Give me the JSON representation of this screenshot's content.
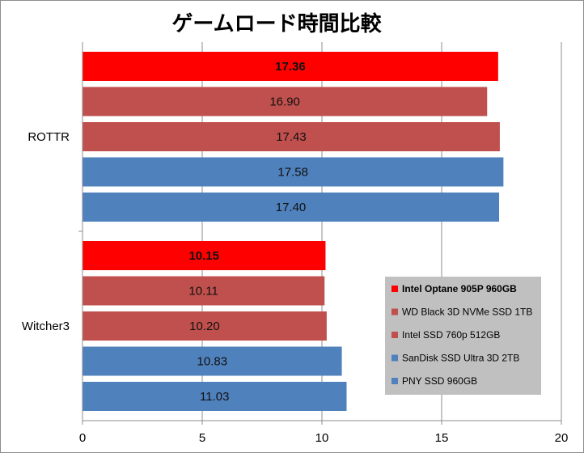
{
  "chart_data": {
    "type": "bar",
    "orientation": "horizontal",
    "title": "ゲームロード時間比較",
    "xlabel": "",
    "ylabel": "",
    "xlim": [
      0,
      20
    ],
    "x_ticks": [
      "0",
      "5",
      "10",
      "15",
      "20"
    ],
    "grid": "vertical",
    "legend_position": "bottom-right",
    "categories": [
      "ROTTR",
      "Witcher3"
    ],
    "series": [
      {
        "name": "Intel Optane 905P 960GB",
        "values": [
          17.36,
          10.15
        ],
        "labels": [
          "17.36",
          "10.15"
        ],
        "color": "#ff0000",
        "emphasis": true
      },
      {
        "name": "WD Black 3D NVMe SSD 1TB",
        "values": [
          16.9,
          10.11
        ],
        "labels": [
          "16.90",
          "10.11"
        ],
        "color": "#c0504d",
        "emphasis": false
      },
      {
        "name": "Intel SSD 760p 512GB",
        "values": [
          17.43,
          10.2
        ],
        "labels": [
          "17.43",
          "10.20"
        ],
        "color": "#c0504d",
        "emphasis": false
      },
      {
        "name": "SanDisk SSD Ultra 3D 2TB",
        "values": [
          17.58,
          10.83
        ],
        "labels": [
          "17.58",
          "10.83"
        ],
        "color": "#4f81bd",
        "emphasis": false
      },
      {
        "name": "PNY SSD 960GB",
        "values": [
          17.4,
          11.03
        ],
        "labels": [
          "17.40",
          "11.03"
        ],
        "color": "#4f81bd",
        "emphasis": false
      }
    ]
  }
}
